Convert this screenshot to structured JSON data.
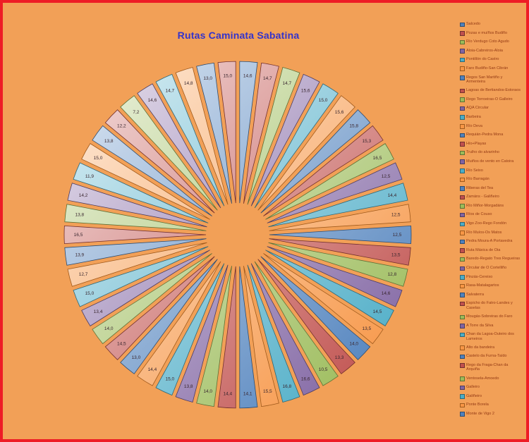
{
  "title": {
    "text": "Rutas Caminata Sabatina",
    "color": "#3333cc"
  },
  "frame": {
    "background_color": "#f2a057",
    "border_color": "#ee1c25"
  },
  "chart_data": {
    "type": "pie",
    "variant": "exploded-wheel",
    "title": "Rutas Caminata Sabatina",
    "legend_position": "right",
    "slice_count": 50,
    "slice_labels_clockwise_from_top": [
      "14,6",
      "14,7",
      "14,7",
      "15,6",
      "15,0",
      "15,6",
      "15,8",
      "15,3",
      "16,5",
      "12,5",
      "14,4",
      "12,5",
      "12,5",
      "13,5",
      "12,8",
      "14,6",
      "14,5",
      "13,5",
      "14,0",
      "13,3",
      "10,5",
      "16,6",
      "16,8",
      "15,5",
      "14,1",
      "14,4",
      "14,0",
      "13,8",
      "15,0",
      "14,4",
      "13,0",
      "14,5",
      "14,0",
      "13,4",
      "15,0",
      "12,7",
      "13,9",
      "16,5",
      "13,8",
      "14,2",
      "11,9",
      "15,0",
      "13,8",
      "12,2",
      "7,2",
      "14,6",
      "14,7",
      "14,8",
      "13,0",
      "15,0"
    ],
    "values": [
      14.6,
      14.7,
      14.7,
      15.6,
      15.0,
      15.6,
      15.8,
      15.3,
      16.5,
      12.5,
      14.4,
      12.5,
      12.5,
      13.5,
      12.8,
      14.6,
      14.5,
      13.5,
      14.0,
      13.3,
      10.5,
      16.6,
      16.8,
      15.5,
      14.1,
      14.4,
      14.0,
      13.8,
      15.0,
      14.4,
      13.0,
      14.5,
      14.0,
      13.4,
      15.0,
      12.7,
      13.9,
      16.5,
      13.8,
      14.2,
      11.9,
      15.0,
      13.8,
      12.2,
      7.2,
      14.6,
      14.7,
      14.8,
      13.0,
      15.0
    ],
    "legend_labels": [
      "Salcedo",
      "Pozas e muíños Budiño",
      "Río Verdugo Coto Agudo",
      "Aloia-Cabreiros-Aloia",
      "Pontillón do Castro",
      "Faro Budiño-San Cibrán",
      "Regos San Martiño y Armenteira",
      "Lagoas de Bertiandos-Estoraos",
      "Rego Torroeiras-O Galleiro",
      "AQA Circular",
      "Barbeira",
      "Río Deva",
      "Requián-Pedra Mona",
      "Hío+Playas",
      "Trulho do alvarinho",
      "Muiños de vento en Catoira",
      "Río Seixo",
      "Río Barragán",
      "Riberas del Tea",
      "Zamáns - Galiñeiro",
      "Río Miñor-Morgadáns",
      "Ríos de Couso",
      "Vigo Zoo-Rego Fondón",
      "Río Muíos-Os Matos",
      "Pedra Moura-A Portavedra",
      "Ruta Máxica de Oia",
      "Baredo-Regato Tres Regueiras",
      "Circular de O Cortelliño",
      "Pinzás-Cereixo",
      "Rasa-Matalagartos",
      "Salvaterra",
      "Espicho do Fatro-Landes y Caselas",
      "Mougás-Sobreiras do Faro",
      "A Torre da Silva",
      "Chan da Lagoa-Outeiro dos Lameiros",
      "Alto da bandeira",
      "Castelo da Furna-Taído",
      "Rego da Fraga-Chan da Arquiña",
      "Ventosela-Amoedo",
      "Galleiro",
      "Galiñeiro",
      "Ponte Borela",
      "Monte de Vigo 2"
    ],
    "palette": [
      "#4F81BD",
      "#C0504D",
      "#9BBB59",
      "#8064A2",
      "#4BACC6",
      "#F79646"
    ],
    "palette_light": [
      "#DCE6F2",
      "#F2DCDB",
      "#EBF1DE",
      "#E6E0EC",
      "#DBEEF4",
      "#FDEADA"
    ],
    "palette_dark": [
      "#2E4D71",
      "#73302E",
      "#5D7035",
      "#4D3C61",
      "#2D6777",
      "#A05A1C"
    ],
    "label_color": "#39262e",
    "legend_text_color": "#943a15"
  }
}
